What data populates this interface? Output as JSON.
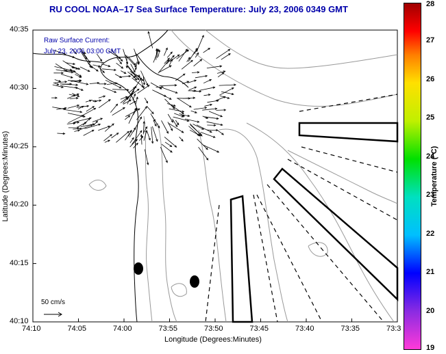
{
  "title": "RU COOL  NOAA–17  Sea Surface Temperature:  July 23, 2006 0349 GMT",
  "legend": {
    "line1": "Raw Surface Current:",
    "line2": "July 23, 2006 03:00 GMT"
  },
  "scale_label": "50 cm/s",
  "xlabel": "Longitude (Degrees:Minutes)",
  "ylabel": "Latitude (Degrees:Minutes)",
  "x_ticks": [
    "74:10",
    "74:05",
    "74:00",
    "73:55",
    "73:50",
    "73:45",
    "73:40",
    "73:35",
    "73:3"
  ],
  "y_ticks": [
    "40:35",
    "40:30",
    "40:25",
    "40:20",
    "40:15",
    "40:10"
  ],
  "colorbar": {
    "label": "Temperature (°C)",
    "ticks": [
      "28",
      "27",
      "26",
      "25",
      "24",
      "23",
      "22",
      "21",
      "20",
      "19"
    ],
    "range": [
      19,
      28
    ]
  },
  "colors": {
    "title": "#0000aa",
    "contour": "#999999",
    "vector": "#000000"
  }
}
